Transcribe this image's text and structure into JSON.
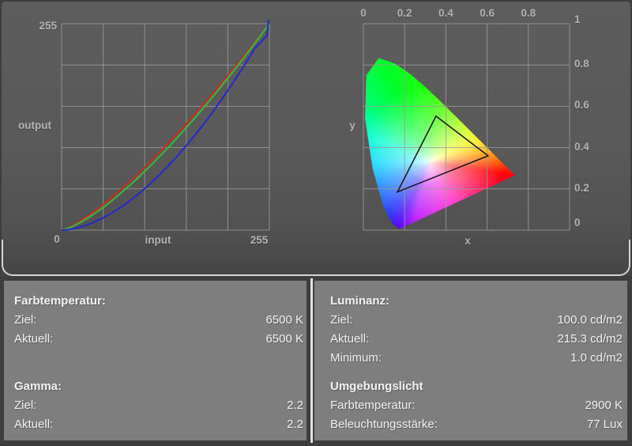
{
  "panels": {
    "left": {
      "sections": [
        {
          "title": "Farbtemperatur:",
          "rows": [
            {
              "label": "Ziel:",
              "value": "6500 K"
            },
            {
              "label": "Aktuell:",
              "value": "6500 K"
            }
          ]
        },
        {
          "title": "Gamma:",
          "rows": [
            {
              "label": "Ziel:",
              "value": "2.2"
            },
            {
              "label": "Aktuell:",
              "value": "2.2"
            }
          ]
        }
      ]
    },
    "right": {
      "sections": [
        {
          "title": "Luminanz:",
          "rows": [
            {
              "label": "Ziel:",
              "value": "100.0 cd/m2"
            },
            {
              "label": "Aktuell:",
              "value": "215.3 cd/m2"
            },
            {
              "label": "Minimum:",
              "value": "1.0 cd/m2"
            }
          ]
        },
        {
          "title": "Umgebungslicht",
          "rows": [
            {
              "label": "Farbtemperatur:",
              "value": "2900 K"
            },
            {
              "label": "Beleuchtungsstärke:",
              "value": "77 Lux"
            }
          ]
        }
      ]
    }
  },
  "chart_data": [
    {
      "type": "line",
      "title": "RGB gamma response curves",
      "xlabel": "input",
      "ylabel": "output",
      "xlim": [
        0,
        255
      ],
      "ylim": [
        0,
        255
      ],
      "x_tick_labels": [
        "0",
        "255"
      ],
      "y_tick_labels": [
        "255"
      ],
      "grid": true,
      "grid_divisions": 5,
      "legend": "none",
      "series": [
        {
          "name": "red",
          "color": "#d22b20",
          "shape": "power",
          "gamma": 1.3,
          "start": [
            0,
            0
          ],
          "end": [
            255,
            255
          ]
        },
        {
          "name": "green",
          "color": "#2cc13c",
          "shape": "power",
          "gamma": 1.37,
          "start": [
            0,
            0
          ],
          "end": [
            255,
            255
          ]
        },
        {
          "name": "blue",
          "color": "#2428cf",
          "shape": "power",
          "gamma": 1.75,
          "start": [
            0,
            0
          ],
          "end": [
            255,
            255
          ],
          "end_spike": true
        }
      ]
    },
    {
      "type": "area",
      "subtype": "cie-1931-chromaticity-diagram",
      "title": "CIE chromaticity diagram with display gamut triangle",
      "xlabel": "x",
      "ylabel": "y",
      "xlim": [
        0,
        1
      ],
      "ylim": [
        0,
        1
      ],
      "x_tick_labels": [
        "0",
        "0.2",
        "0.4",
        "0.6",
        "0.8"
      ],
      "y_tick_labels": [
        "1",
        "0.8",
        "0.6",
        "0.4",
        "0.2",
        "0"
      ],
      "grid": true,
      "grid_divisions": 5,
      "gamut_triangle": {
        "red": [
          0.605,
          0.36
        ],
        "green": [
          0.352,
          0.552
        ],
        "blue": [
          0.165,
          0.185
        ]
      },
      "spectral_locus": [
        [
          0.1741,
          0.005
        ],
        [
          0.144,
          0.0297
        ],
        [
          0.1241,
          0.0578
        ],
        [
          0.0913,
          0.1327
        ],
        [
          0.0454,
          0.295
        ],
        [
          0.0082,
          0.5384
        ],
        [
          0.0139,
          0.7502
        ],
        [
          0.0743,
          0.8338
        ],
        [
          0.1547,
          0.8059
        ],
        [
          0.2296,
          0.7543
        ],
        [
          0.3016,
          0.6923
        ],
        [
          0.3731,
          0.6245
        ],
        [
          0.4441,
          0.5547
        ],
        [
          0.5125,
          0.4866
        ],
        [
          0.5752,
          0.4242
        ],
        [
          0.627,
          0.3725
        ],
        [
          0.6915,
          0.3083
        ],
        [
          0.7347,
          0.2653
        ]
      ]
    }
  ],
  "colors": {
    "top_panel_bg": "#595959",
    "bottom_panel_bg": "#7e7e7e",
    "page_bg": "#3e3e3e",
    "grid_line": "#9a9a9a",
    "chart_label": "#b2b2b2",
    "panel_text": "#f1f1f1",
    "divider": "#e3e3e3",
    "gamut_outline": "#151515"
  }
}
